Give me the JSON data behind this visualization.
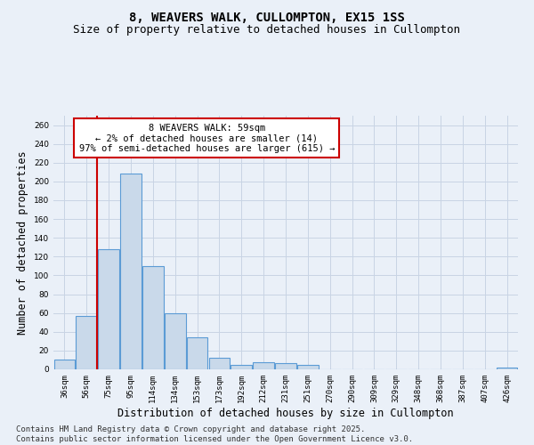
{
  "title_line1": "8, WEAVERS WALK, CULLOMPTON, EX15 1SS",
  "title_line2": "Size of property relative to detached houses in Cullompton",
  "xlabel": "Distribution of detached houses by size in Cullompton",
  "ylabel": "Number of detached properties",
  "categories": [
    "36sqm",
    "56sqm",
    "75sqm",
    "95sqm",
    "114sqm",
    "134sqm",
    "153sqm",
    "173sqm",
    "192sqm",
    "212sqm",
    "231sqm",
    "251sqm",
    "270sqm",
    "290sqm",
    "309sqm",
    "329sqm",
    "348sqm",
    "368sqm",
    "387sqm",
    "407sqm",
    "426sqm"
  ],
  "values": [
    10,
    57,
    128,
    208,
    110,
    60,
    34,
    12,
    5,
    8,
    7,
    5,
    0,
    0,
    0,
    0,
    0,
    0,
    0,
    0,
    2
  ],
  "bar_color": "#c9d9ea",
  "bar_edge_color": "#5b9bd5",
  "grid_color": "#c8d4e4",
  "annotation_line1": "8 WEAVERS WALK: 59sqm",
  "annotation_line2": "← 2% of detached houses are smaller (14)",
  "annotation_line3": "97% of semi-detached houses are larger (615) →",
  "annotation_box_color": "#ffffff",
  "annotation_edge_color": "#cc0000",
  "vline_color": "#cc0000",
  "vline_x": 1.47,
  "ylim": [
    0,
    270
  ],
  "yticks": [
    0,
    20,
    40,
    60,
    80,
    100,
    120,
    140,
    160,
    180,
    200,
    220,
    240,
    260
  ],
  "footer_line1": "Contains HM Land Registry data © Crown copyright and database right 2025.",
  "footer_line2": "Contains public sector information licensed under the Open Government Licence v3.0.",
  "background_color": "#eaf0f8",
  "title_fontsize": 10,
  "subtitle_fontsize": 9,
  "tick_fontsize": 6.5,
  "label_fontsize": 8.5,
  "footer_fontsize": 6.5
}
